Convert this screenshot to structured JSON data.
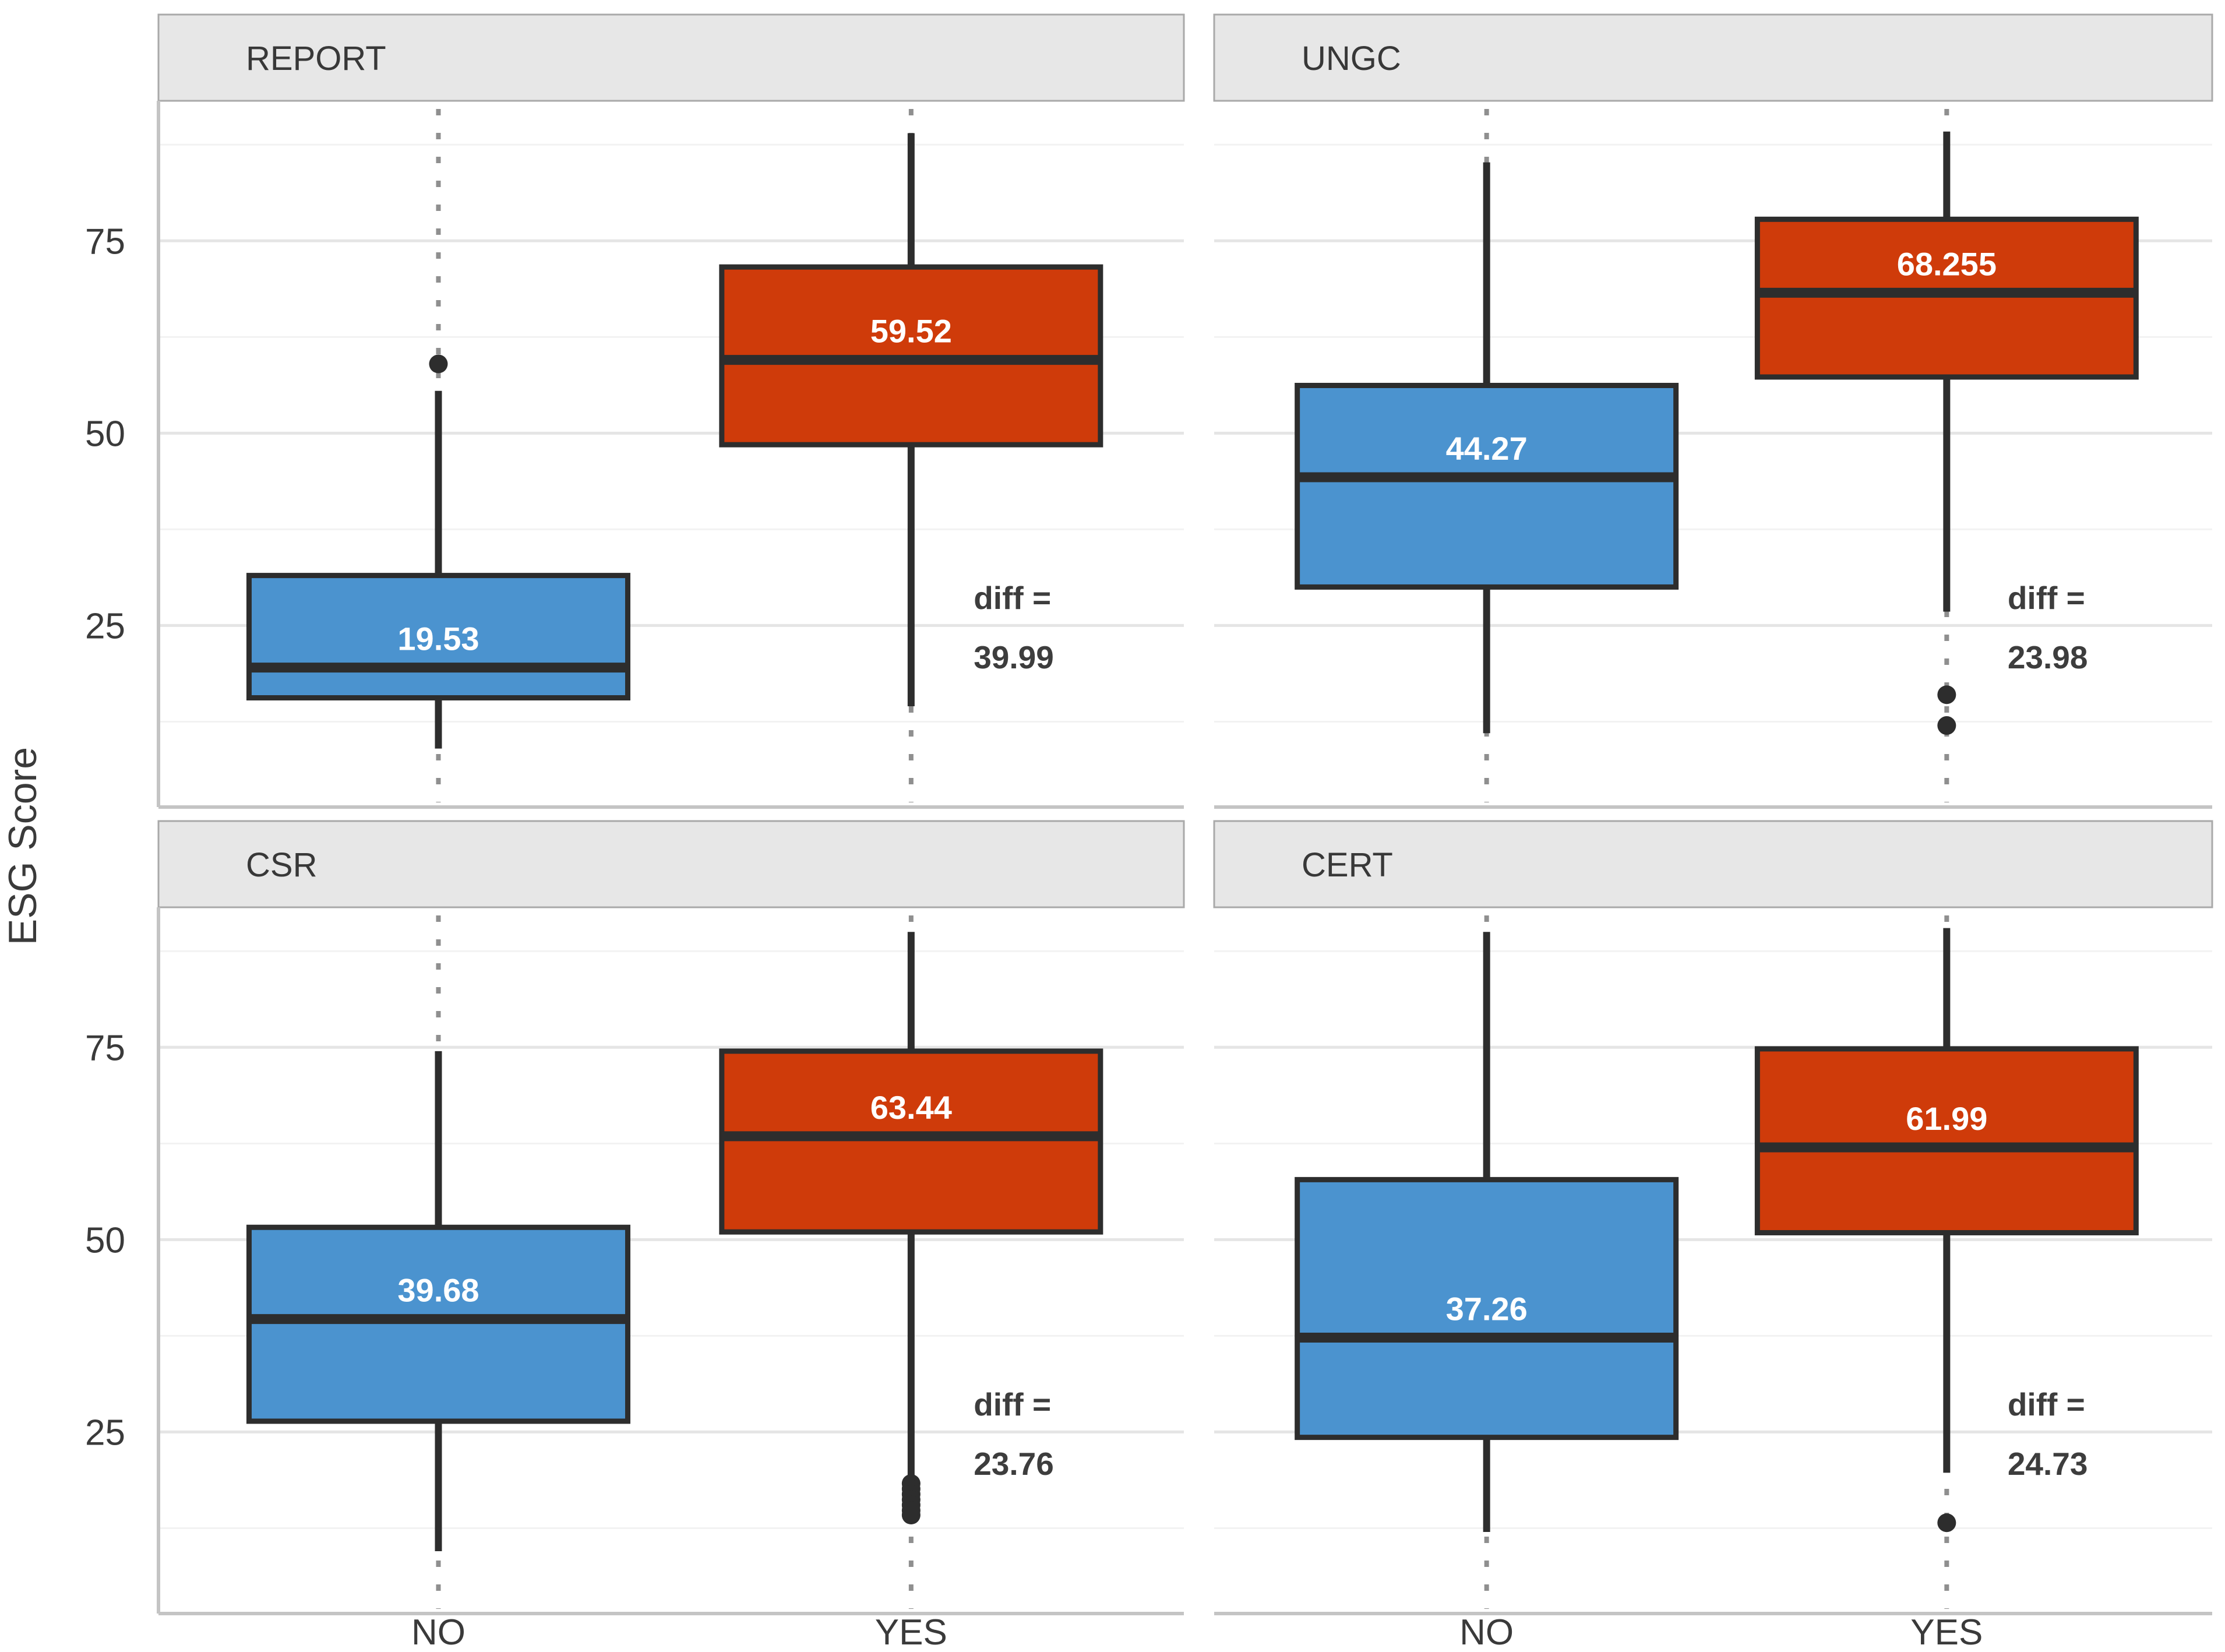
{
  "figure": {
    "background": "#ffffff"
  },
  "y_axis": {
    "title": "ESG Score",
    "tick_labels": [
      "75",
      "50",
      "25"
    ]
  },
  "x_axis": {
    "categories": [
      "NO",
      "YES"
    ]
  },
  "style": {
    "no_fill": "#4B93CF",
    "yes_fill": "#CF3B0A",
    "box_border": "#2D2D2D",
    "median_line": "#2D2D2D",
    "median_label_color": "#FFFFFF",
    "outlier_color": "#2D2D2D",
    "dotted_guide": "#8F8F8F",
    "grid_major": "#E5E5E5",
    "grid_minor": "#F2F2F2",
    "axis_line": "#C4C4C4",
    "axis_text": "#3A3A3A",
    "diff_text_color": "#3D3D3D",
    "strip_fill": "#E7E7E7",
    "strip_border": "#A9A9A9",
    "strip_text_color": "#383838"
  },
  "chart_data": {
    "type": "boxplot",
    "title": "",
    "xlabel": "",
    "ylabel": "ESG Score",
    "categories": [
      "NO",
      "YES"
    ],
    "y_ticks": [
      25,
      50,
      75
    ],
    "y_minor_ticks": [
      12.5,
      37.5,
      62.5,
      87.5
    ],
    "y_domain": [
      1.4,
      93.2
    ],
    "grid": true,
    "legend": "none",
    "facets": [
      {
        "title": "REPORT",
        "diff_label": "diff =",
        "diff_value": "39.99",
        "boxes": [
          {
            "category": "NO",
            "fill": "#4B93CF",
            "whisker_low": 9,
            "q1": 15.6,
            "median": 19.53,
            "q3": 31.5,
            "whisker_high": 55.5,
            "median_label": "19.53",
            "outliers": [
              59
            ]
          },
          {
            "category": "YES",
            "fill": "#CF3B0A",
            "whisker_low": 14.5,
            "q1": 48.5,
            "median": 59.52,
            "q3": 71.6,
            "whisker_high": 89,
            "median_label": "59.52",
            "outliers": []
          }
        ]
      },
      {
        "title": "UNGC",
        "diff_label": "diff =",
        "diff_value": "23.98",
        "boxes": [
          {
            "category": "NO",
            "fill": "#4B93CF",
            "whisker_low": 11,
            "q1": 30,
            "median": 44.27,
            "q3": 56.2,
            "whisker_high": 85.2,
            "median_label": "44.27",
            "outliers": []
          },
          {
            "category": "YES",
            "fill": "#CF3B0A",
            "whisker_low": 26.8,
            "q1": 57.3,
            "median": 68.255,
            "q3": 77.8,
            "whisker_high": 89.2,
            "median_label": "68.255",
            "outliers": [
              16,
              12
            ]
          }
        ]
      },
      {
        "title": "CSR",
        "diff_label": "diff =",
        "diff_value": "23.76",
        "boxes": [
          {
            "category": "NO",
            "fill": "#4B93CF",
            "whisker_low": 9.5,
            "q1": 26.4,
            "median": 39.68,
            "q3": 51.6,
            "whisker_high": 74.5,
            "median_label": "39.68",
            "outliers": []
          },
          {
            "category": "YES",
            "fill": "#CF3B0A",
            "whisker_low": 18.4,
            "q1": 51,
            "median": 63.44,
            "q3": 74.5,
            "whisker_high": 90,
            "median_label": "63.44",
            "outliers": [
              18.3,
              17.6,
              16.9,
              16.2,
              15.5,
              14.8,
              14.2
            ]
          }
        ]
      },
      {
        "title": "CERT",
        "diff_label": "diff =",
        "diff_value": "24.73",
        "boxes": [
          {
            "category": "NO",
            "fill": "#4B93CF",
            "whisker_low": 12,
            "q1": 24.3,
            "median": 37.26,
            "q3": 57.8,
            "whisker_high": 90,
            "median_label": "37.26",
            "outliers": []
          },
          {
            "category": "YES",
            "fill": "#CF3B0A",
            "whisker_low": 19.7,
            "q1": 50.9,
            "median": 61.99,
            "q3": 74.8,
            "whisker_high": 90.5,
            "median_label": "61.99",
            "outliers": [
              13.2
            ]
          }
        ]
      }
    ]
  }
}
